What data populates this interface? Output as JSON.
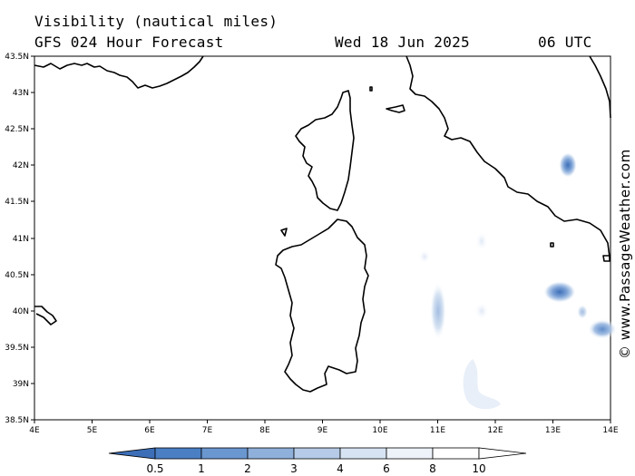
{
  "header": {
    "title": "Visibility (nautical miles)",
    "subtitle": "GFS 024 Hour Forecast",
    "date": "Wed 18 Jun 2025",
    "run": "06 UTC"
  },
  "map": {
    "lat_range": [
      38.5,
      43.5
    ],
    "lon_range": [
      4,
      14
    ],
    "lat_ticks": [
      "43.5N",
      "43N",
      "42.5N",
      "42N",
      "41.5N",
      "41N",
      "40.5N",
      "40N",
      "39.5N",
      "39N",
      "38.5N"
    ],
    "lon_ticks": [
      "4E",
      "5E",
      "6E",
      "7E",
      "8E",
      "9E",
      "10E",
      "11E",
      "12E",
      "13E",
      "14E"
    ],
    "low_visibility_areas": [
      {
        "lat": 42.0,
        "lon": 13.25,
        "level": "dark"
      },
      {
        "lat": 40.27,
        "lon": 13.1,
        "level": "dark"
      },
      {
        "lat": 39.78,
        "lon": 13.85,
        "level": "medium"
      },
      {
        "lat": 40.0,
        "lon": 11.0,
        "level": "light"
      },
      {
        "lat": 40.0,
        "lon": 11.7,
        "level": "faint"
      },
      {
        "lat": 41.0,
        "lon": 11.7,
        "level": "faint"
      },
      {
        "lat": 40.75,
        "lon": 10.75,
        "level": "faint"
      },
      {
        "lat": 38.95,
        "lon": 11.65,
        "level": "faint"
      }
    ]
  },
  "colorbar": {
    "labels": [
      "0.5",
      "1",
      "2",
      "3",
      "4",
      "6",
      "8",
      "10"
    ],
    "colors": [
      "#3d6fb8",
      "#4a7fc4",
      "#6a97d0",
      "#8fb0db",
      "#b5cbe7",
      "#d6e3f2",
      "#eef3fa",
      "#ffffff",
      "#ffffff"
    ]
  },
  "watermark": "© www.PassageWeather.com"
}
